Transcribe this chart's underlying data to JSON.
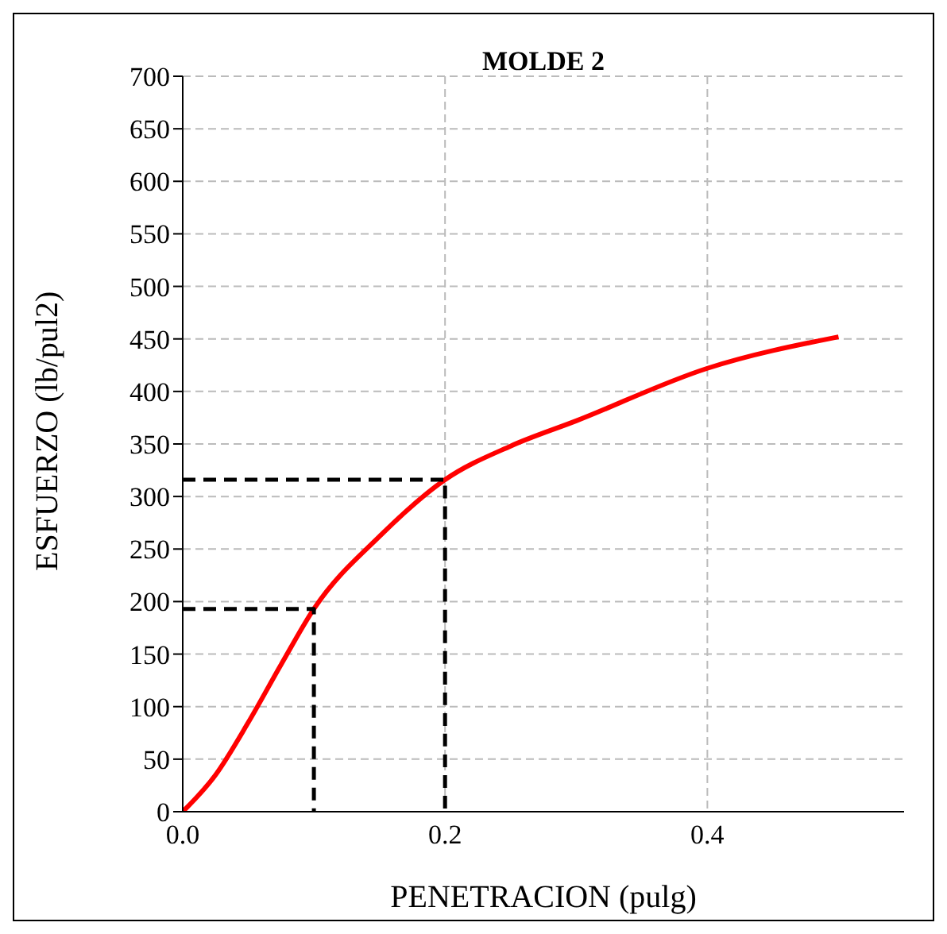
{
  "chart_data": {
    "type": "line",
    "title": "MOLDE 2",
    "xlabel": "PENETRACION (pulg)",
    "ylabel": "ESFUERZO (lb/pul2)",
    "xlim": [
      0,
      0.55
    ],
    "xticks": [
      {
        "value": 0,
        "label": "0.0"
      },
      {
        "value": 0.2,
        "label": "0.2"
      },
      {
        "value": 0.4,
        "label": "0.4"
      }
    ],
    "ylim": [
      0,
      700
    ],
    "yticks": [
      0,
      50,
      100,
      150,
      200,
      250,
      300,
      350,
      400,
      450,
      500,
      550,
      600,
      650,
      700
    ],
    "grid": true,
    "marker": "none",
    "series": [
      {
        "color": "#ff0000",
        "line_style": "solid",
        "x": [
          0,
          0.025,
          0.05,
          0.075,
          0.1,
          0.15,
          0.2,
          0.25,
          0.3,
          0.4,
          0.5
        ],
        "values": [
          0,
          35,
          85,
          140,
          193,
          262,
          316,
          348,
          372,
          422,
          452
        ]
      },
      {
        "color": "#000000",
        "line_style": "dashed",
        "x": [
          0,
          0.1,
          0.1
        ],
        "values": [
          193,
          193,
          0
        ]
      },
      {
        "color": "#000000",
        "line_style": "dashed",
        "x": [
          0,
          0.2,
          0.2
        ],
        "values": [
          316,
          316,
          0
        ]
      }
    ]
  }
}
